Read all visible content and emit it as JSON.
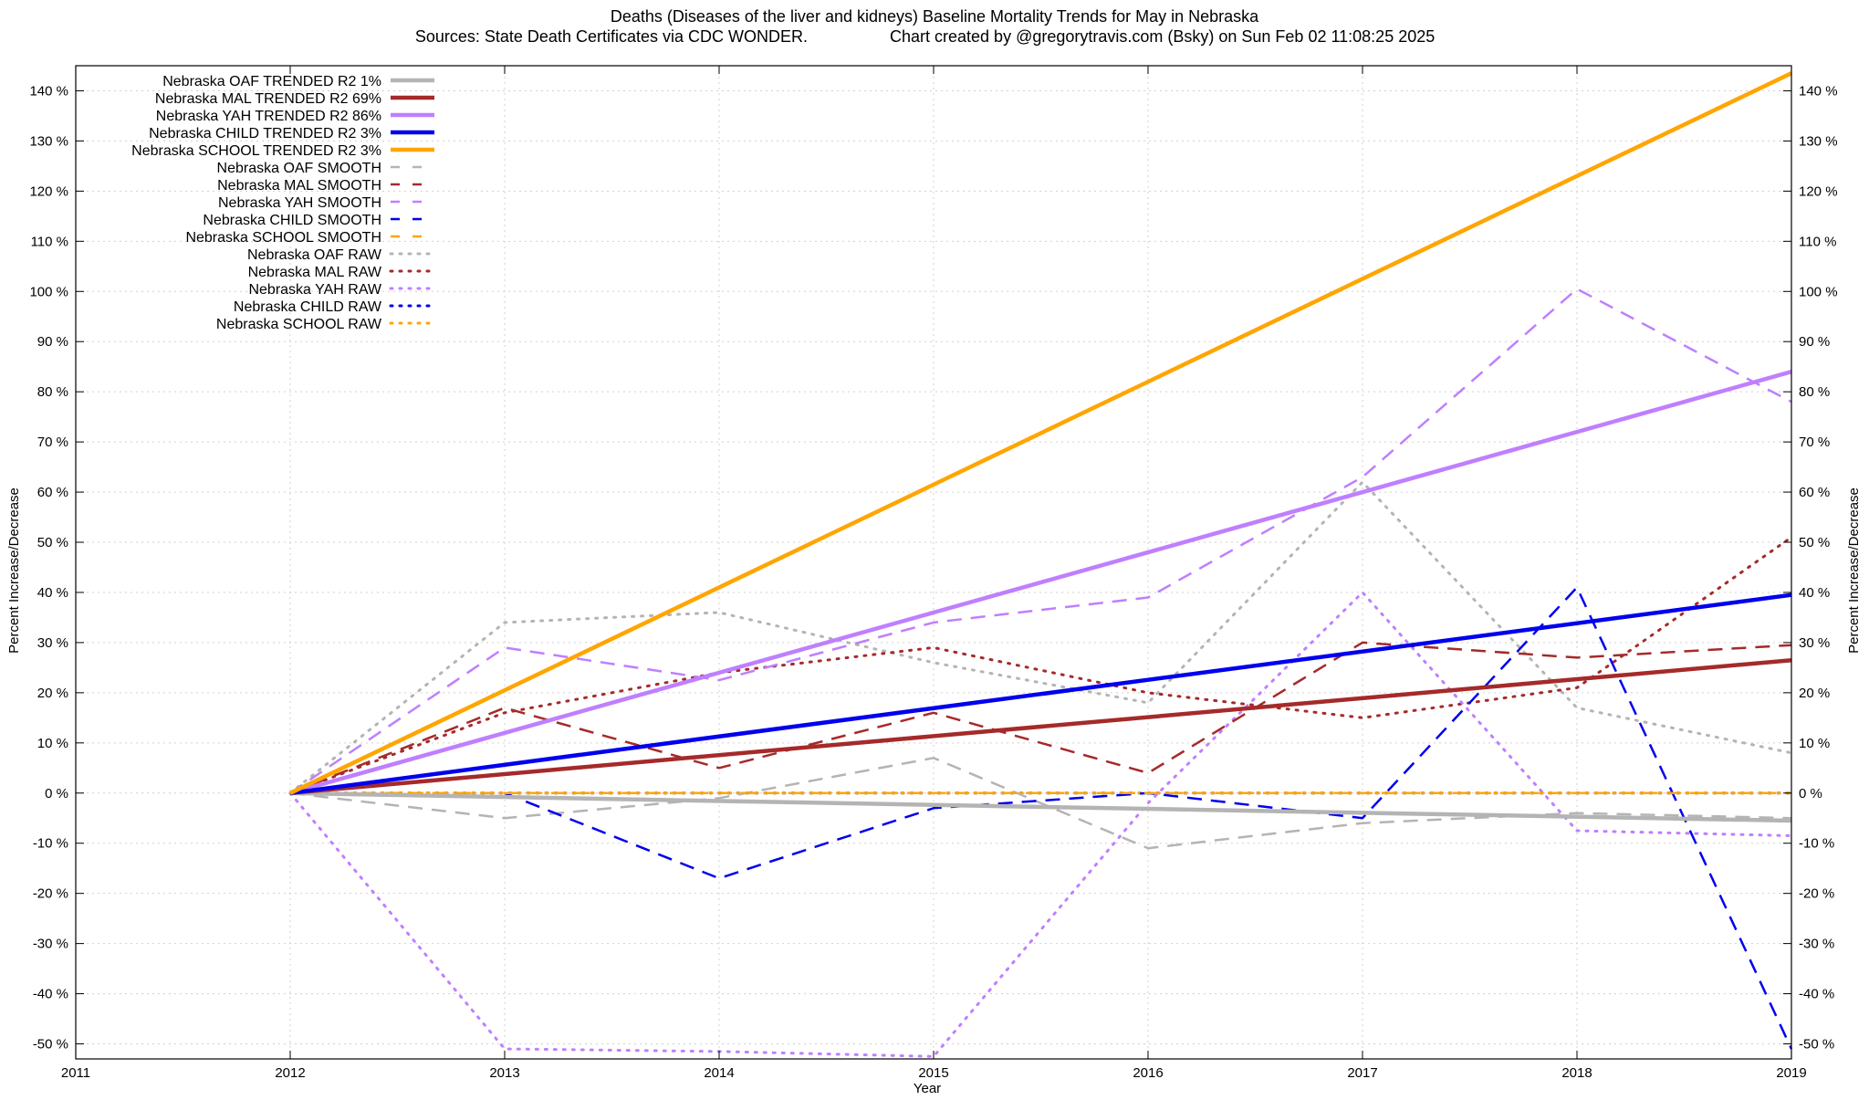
{
  "chart_data": {
    "type": "line",
    "title": "Deaths (Diseases of the liver and kidneys)  Baseline Mortality Trends for May in Nebraska",
    "subtitle_left": "Sources: State Death Certificates via CDC WONDER.",
    "subtitle_right": "Chart created by @gregorytravis.com (Bsky) on Sun Feb 02 11:08:25 2025",
    "xlabel": "Year",
    "ylabel_left": "Percent Increase/Decrease",
    "ylabel_right": "Percent Increase/Decrease",
    "xlim": [
      2011,
      2019
    ],
    "ylim": [
      -53,
      145
    ],
    "x_ticks": [
      2011,
      2012,
      2013,
      2014,
      2015,
      2016,
      2017,
      2018,
      2019
    ],
    "x_tick_labels": [
      "2011",
      "2012",
      "2013",
      "2014",
      "2015",
      "2016",
      "2017",
      "2018",
      "2019"
    ],
    "y_ticks": [
      -50,
      -40,
      -30,
      -20,
      -10,
      0,
      10,
      20,
      30,
      40,
      50,
      60,
      70,
      80,
      90,
      100,
      110,
      120,
      130,
      140
    ],
    "y_tick_labels": [
      "-50 %",
      "-40 %",
      "-30 %",
      "-20 %",
      "-10 %",
      "0 %",
      "10 %",
      "20 %",
      "30 %",
      "40 %",
      "50 %",
      "60 %",
      "70 %",
      "80 %",
      "90 %",
      "100 %",
      "110 %",
      "120 %",
      "130 %",
      "140 %"
    ],
    "grid": true,
    "legend_position": "top-left",
    "colors": {
      "oaf": "#b4b4b4",
      "mal": "#a52a2a",
      "yah": "#bf7fff",
      "child": "#0000ee",
      "school": "#ffa500",
      "grid": "#d0d0d0",
      "axis": "#000000"
    },
    "series": [
      {
        "name": "Nebraska OAF TRENDED R2  1%",
        "key": "oaf",
        "style": "trend",
        "x": [
          2012,
          2019
        ],
        "y": [
          0,
          -5.5
        ]
      },
      {
        "name": "Nebraska MAL TRENDED R2  69%",
        "key": "mal",
        "style": "trend",
        "x": [
          2012,
          2019
        ],
        "y": [
          0,
          26.5
        ]
      },
      {
        "name": "Nebraska YAH TRENDED R2  86%",
        "key": "yah",
        "style": "trend",
        "x": [
          2012,
          2019
        ],
        "y": [
          0,
          84
        ]
      },
      {
        "name": "Nebraska CHILD TRENDED R2  3%",
        "key": "child",
        "style": "trend",
        "x": [
          2012,
          2019
        ],
        "y": [
          0,
          39.5
        ]
      },
      {
        "name": "Nebraska SCHOOL TRENDED R2  3%",
        "key": "school",
        "style": "trend",
        "x": [
          2012,
          2019
        ],
        "y": [
          0,
          143.5
        ]
      },
      {
        "name": "Nebraska OAF SMOOTH",
        "key": "oaf",
        "style": "smooth",
        "x": [
          2012,
          2013,
          2014,
          2015,
          2016,
          2017,
          2018,
          2019
        ],
        "y": [
          0,
          -5,
          -1,
          7,
          -11,
          -6,
          -4,
          -5
        ]
      },
      {
        "name": "Nebraska MAL SMOOTH",
        "key": "mal",
        "style": "smooth",
        "x": [
          2012,
          2013,
          2014,
          2015,
          2016,
          2017,
          2018,
          2019
        ],
        "y": [
          0,
          17,
          5,
          16,
          4,
          30,
          27,
          29.5
        ]
      },
      {
        "name": "Nebraska YAH SMOOTH",
        "key": "yah",
        "style": "smooth",
        "x": [
          2012,
          2013,
          2014,
          2015,
          2016,
          2017,
          2018,
          2019
        ],
        "y": [
          0,
          29,
          22.5,
          34,
          39,
          63,
          100.5,
          78
        ]
      },
      {
        "name": "Nebraska CHILD SMOOTH",
        "key": "child",
        "style": "smooth",
        "x": [
          2012,
          2013,
          2014,
          2015,
          2016,
          2017,
          2018,
          2019
        ],
        "y": [
          0,
          0,
          -17,
          -3,
          0,
          -5,
          41,
          -51
        ]
      },
      {
        "name": "Nebraska SCHOOL SMOOTH",
        "key": "school",
        "style": "smooth",
        "x": [
          2012,
          2013,
          2014,
          2015,
          2016,
          2017,
          2018,
          2019
        ],
        "y": [
          0,
          0,
          0,
          0,
          0,
          0,
          0,
          0
        ]
      },
      {
        "name": "Nebraska OAF RAW",
        "key": "oaf",
        "style": "raw",
        "x": [
          2012,
          2013,
          2014,
          2015,
          2016,
          2017,
          2018,
          2019
        ],
        "y": [
          0,
          34,
          36,
          26,
          18,
          62,
          17,
          8
        ]
      },
      {
        "name": "Nebraska MAL RAW",
        "key": "mal",
        "style": "raw",
        "x": [
          2012,
          2013,
          2014,
          2015,
          2016,
          2017,
          2018,
          2019
        ],
        "y": [
          0,
          16,
          24,
          29,
          20,
          15,
          21,
          51
        ]
      },
      {
        "name": "Nebraska YAH RAW",
        "key": "yah",
        "style": "raw",
        "x": [
          2012,
          2013,
          2014,
          2015,
          2016,
          2017,
          2018,
          2019
        ],
        "y": [
          0,
          -51,
          -51.5,
          -52.5,
          -2,
          40,
          -7.5,
          -8.5
        ]
      },
      {
        "name": "Nebraska CHILD RAW",
        "key": "child",
        "style": "raw",
        "x": [
          2012,
          2013,
          2014,
          2015,
          2016,
          2017,
          2018,
          2019
        ],
        "y": [
          0,
          0,
          0,
          0,
          0,
          0,
          0,
          0
        ]
      },
      {
        "name": "Nebraska SCHOOL RAW",
        "key": "school",
        "style": "raw",
        "x": [
          2012,
          2013,
          2014,
          2015,
          2016,
          2017,
          2018,
          2019
        ],
        "y": [
          0,
          0,
          0,
          0,
          0,
          0,
          0,
          0
        ]
      }
    ]
  }
}
